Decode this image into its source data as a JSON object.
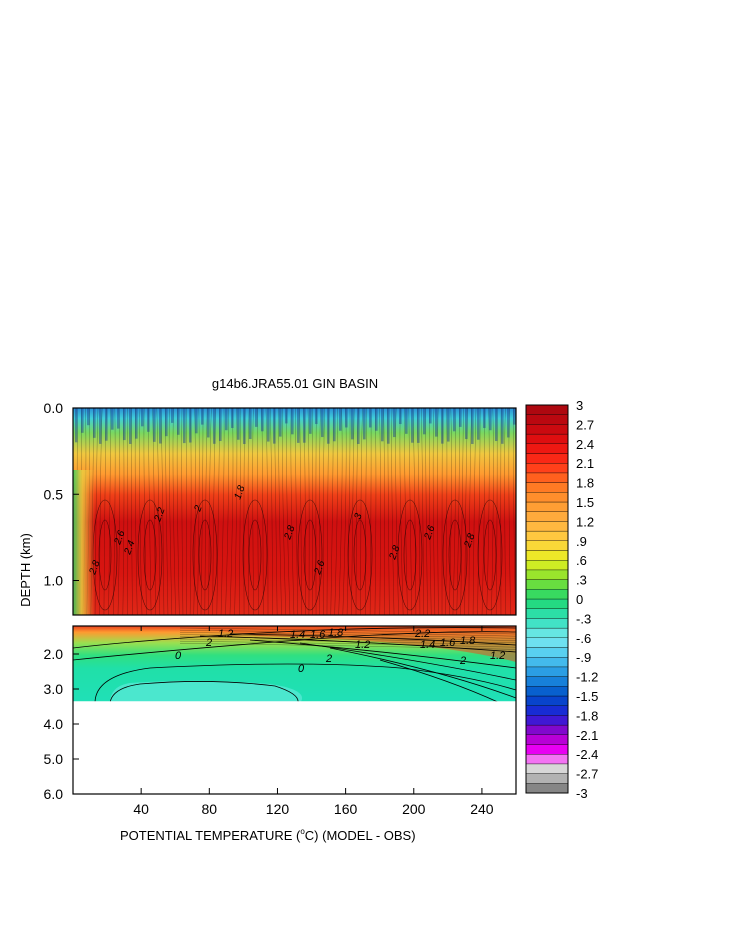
{
  "chart_data": {
    "type": "heatmap",
    "title": "g14b6.JRA55.01 GIN BASIN",
    "xlabel": "POTENTIAL TEMPERATURE (",
    "xlabel_sup": "o",
    "xlabel_tail": "C) (MODEL - OBS)",
    "ylabel": "DEPTH (km)",
    "x_range": [
      0,
      260
    ],
    "x_ticks": [
      40,
      80,
      120,
      160,
      200,
      240
    ],
    "upper_panel": {
      "depth_range_km": [
        0,
        1.2
      ],
      "y_ticks": [
        "0.0",
        "0.5",
        "1.0"
      ],
      "y_tick_values": [
        0,
        0.5,
        1.0
      ]
    },
    "lower_panel": {
      "depth_range_km": [
        1.2,
        6.0
      ],
      "y_ticks": [
        "2.0",
        "3.0",
        "4.0",
        "5.0",
        "6.0"
      ],
      "y_tick_values": [
        2.0,
        3.0,
        4.0,
        5.0,
        6.0
      ],
      "data_bottom_km": 3.35
    },
    "colorbar": {
      "range": [
        -3,
        3
      ],
      "step": 0.15,
      "labels": [
        "3",
        "2.7",
        "2.4",
        "2.1",
        "1.8",
        "1.5",
        "1.2",
        ".9",
        ".6",
        ".3",
        "0",
        "-.3",
        "-.6",
        "-.9",
        "-1.2",
        "-1.5",
        "-1.8",
        "-2.1",
        "-2.4",
        "-2.7",
        "-3"
      ],
      "anchors": [
        [
          -3.0,
          "#707070"
        ],
        [
          -2.7,
          "#c8c8c8"
        ],
        [
          -2.55,
          "#e6e6e6"
        ],
        [
          -2.4,
          "#ff00ff"
        ],
        [
          -2.1,
          "#a100c9"
        ],
        [
          -1.8,
          "#2020d8"
        ],
        [
          -1.5,
          "#0050c8"
        ],
        [
          -1.2,
          "#1f90e0"
        ],
        [
          -0.9,
          "#4fc8f0"
        ],
        [
          -0.6,
          "#78e8f0"
        ],
        [
          -0.3,
          "#30e0b8"
        ],
        [
          0.0,
          "#20d870"
        ],
        [
          0.3,
          "#80e030"
        ],
        [
          0.6,
          "#e8f020"
        ],
        [
          0.9,
          "#ffd040"
        ],
        [
          1.2,
          "#ffb040"
        ],
        [
          1.5,
          "#ff9830"
        ],
        [
          1.8,
          "#ff7020"
        ],
        [
          2.1,
          "#ff3018"
        ],
        [
          2.4,
          "#e81010"
        ],
        [
          2.7,
          "#c00810"
        ],
        [
          3.0,
          "#a80810"
        ]
      ]
    },
    "upper_contour_labels": [
      "2.8",
      "2.6",
      "2.4",
      "2.2",
      "2",
      "1.8",
      "2.8",
      "2.6",
      "3",
      "2.8",
      "2.6",
      "2.8"
    ],
    "lower_contour_labels": [
      "0",
      "0",
      "1.2",
      "1.4",
      "1.6",
      "1.8",
      "2",
      "2",
      "1.4",
      "1.6",
      "1.8",
      "1.2",
      "2",
      "2.2",
      "1.2"
    ]
  }
}
